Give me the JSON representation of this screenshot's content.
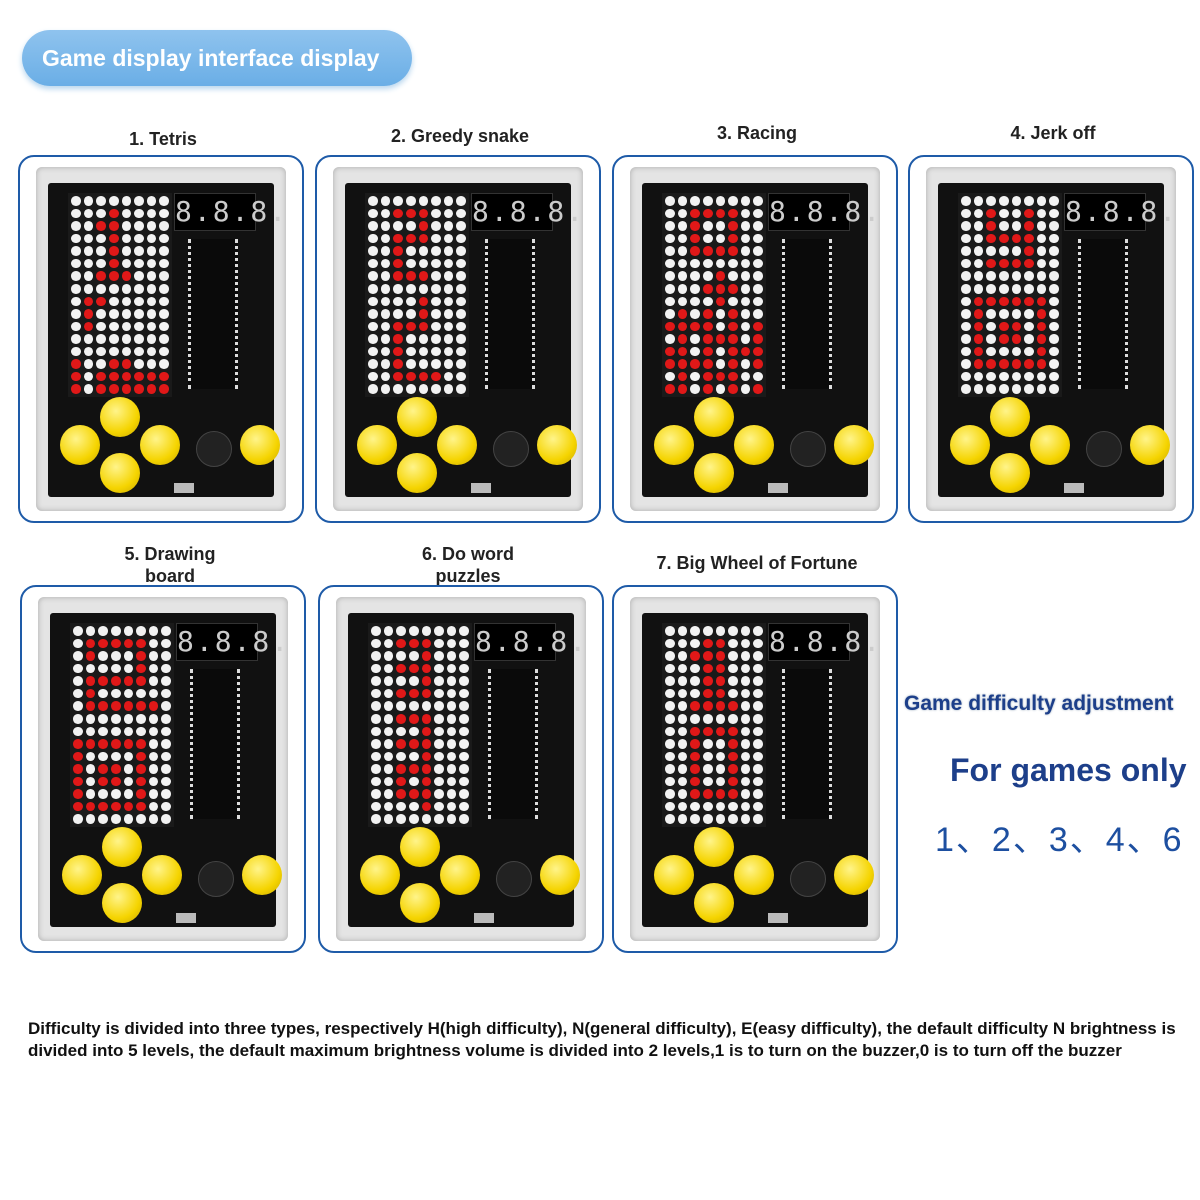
{
  "header": {
    "title": "Game display interface display"
  },
  "games": [
    {
      "label": "1. Tetris",
      "display": "8.8.8.",
      "pattern": [
        "........",
        "...#....",
        "..##....",
        "...#....",
        "...#....",
        "...#....",
        "..###...",
        "........",
        ".##.....",
        ".#......",
        ".#......",
        "........",
        "........",
        "#..##...",
        "#.######",
        "#.######"
      ]
    },
    {
      "label": "2. Greedy snake",
      "display": "8.8.8.",
      "pattern": [
        "........",
        "..###...",
        "....#...",
        "..###...",
        "..#.....",
        "..#.....",
        "..###...",
        "........",
        "....#...",
        "....#...",
        "..###...",
        "..#.....",
        "..#.....",
        "..#.....",
        "..####..",
        "........"
      ]
    },
    {
      "label": "3. Racing",
      "display": "8.8.8.",
      "pattern": [
        "........",
        "..####..",
        "..#..#..",
        "..#..#..",
        "..####..",
        "........",
        "....#...",
        "...###..",
        "....#...",
        ".#.#.#..",
        "####.#.#",
        ".#.###.#",
        "##.#.###",
        "####.#.#",
        ".#.###..",
        "##.#.#.#"
      ]
    },
    {
      "label": "4. Jerk off",
      "display": "8.8.8.",
      "pattern": [
        "........",
        "..#..#..",
        "..#..#..",
        "..####..",
        ".....#..",
        "..####..",
        "........",
        "........",
        ".######.",
        ".#....#.",
        ".#.##.#.",
        ".#.##.#.",
        ".#....#.",
        ".######.",
        "........",
        "........"
      ]
    },
    {
      "label": "5. Drawing board",
      "display": "8.8.8.",
      "pattern": [
        "........",
        ".#####..",
        ".#...#..",
        ".....#..",
        ".#####..",
        ".#......",
        ".######.",
        "........",
        "........",
        "######..",
        "#....#..",
        "#.##.#..",
        "#.##.#..",
        "#....#..",
        "######..",
        "........"
      ]
    },
    {
      "label": "6. Do word puzzles",
      "display": "8.8.8.",
      "pattern": [
        "........",
        "..###...",
        "....#...",
        "..###...",
        "....#...",
        "..###...",
        "........",
        "..###...",
        "....#...",
        "..###...",
        "....#...",
        "..###...",
        "..#.#...",
        "..###...",
        "....#...",
        "........"
      ]
    },
    {
      "label": "7. Big Wheel of Fortune",
      "display": "8.8.8.",
      "pattern": [
        "........",
        "...##...",
        "..###...",
        "...##...",
        "...##...",
        "...##...",
        "..####..",
        "........",
        "..####..",
        "..#..#..",
        "..#..#..",
        "..#..#..",
        "..#..#..",
        "..####..",
        "........",
        "........"
      ]
    }
  ],
  "side": {
    "title": "Game difficulty adjustment",
    "subtitle": "For games only",
    "games": "1、2、3、4、6"
  },
  "description": "Difficulty is divided into three types, respectively H(high difficulty), N(general difficulty), E(easy difficulty), the default difficulty N brightness is divided into 5 levels, the default maximum brightness volume is divided into 2 levels,1 is to turn on the buzzer,0 is to turn off the buzzer",
  "colors": {
    "led_on": "#e01818",
    "button": "#f5d400",
    "frame": "#1e5ba8",
    "pill": "#6aaee6"
  }
}
